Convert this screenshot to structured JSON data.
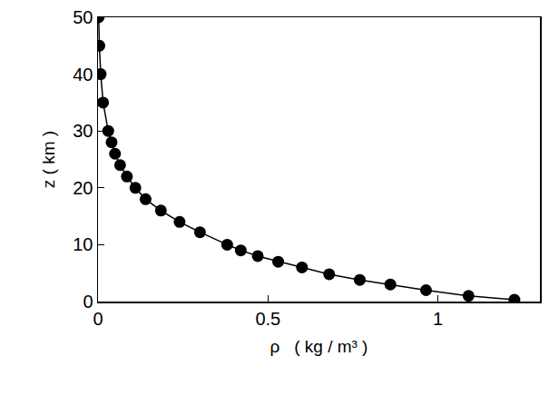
{
  "chart_data": {
    "type": "line",
    "x_label": "ρ   ( kg / m³ )",
    "y_label": "z ( km )",
    "x": [
      1.225,
      1.09,
      0.965,
      0.86,
      0.77,
      0.68,
      0.6,
      0.53,
      0.47,
      0.42,
      0.38,
      0.3,
      0.24,
      0.185,
      0.14,
      0.11,
      0.085,
      0.065,
      0.05,
      0.04,
      0.03,
      0.015,
      0.008,
      0.004,
      0.002
    ],
    "values": [
      0.3,
      1,
      2,
      3,
      3.8,
      4.8,
      6,
      7,
      8,
      9,
      10,
      12.2,
      14,
      16,
      18,
      20,
      22,
      24,
      26,
      28,
      30,
      35,
      40,
      45,
      50
    ],
    "color": "#000000",
    "marker": "circle",
    "line_style": "solid",
    "xlim": [
      0,
      1.3
    ],
    "xticks": [
      0,
      0.5,
      1
    ],
    "ylim": [
      0,
      50
    ],
    "yticks": [
      0,
      10,
      20,
      30,
      40,
      50
    ],
    "grid": false
  }
}
